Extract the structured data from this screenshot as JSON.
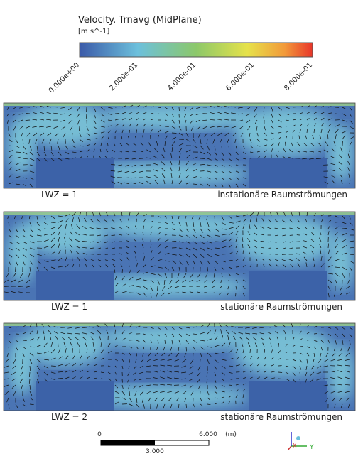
{
  "legend": {
    "title": "Velocity. Trnavg (MidPlane)",
    "unit": "[m s^-1]",
    "ticks": [
      "0.000e+00",
      "2.000e-01",
      "4.000e-01",
      "6.000e-01",
      "8.000e-01"
    ]
  },
  "panels": [
    {
      "label": "LWZ = 1",
      "caption": "instationäre Raumströmungen"
    },
    {
      "label": "LWZ = 1",
      "caption": "stationäre Raumströmungen"
    },
    {
      "label": "LWZ = 2",
      "caption": "stationäre Raumströmungen"
    }
  ],
  "scale_bar": {
    "start": "0",
    "end": "6.000",
    "unit": "(m)",
    "mid": "3.000"
  },
  "triad": {
    "x": "X",
    "y": "Y"
  }
}
